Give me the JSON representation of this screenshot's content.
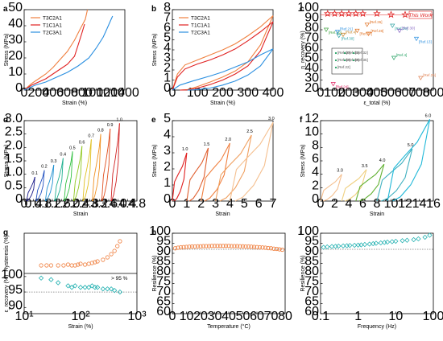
{
  "colors": {
    "orange": "#f08040",
    "red": "#e02020",
    "blue": "#2a8fe0",
    "teal": "#20b0b0",
    "gray": "#999999"
  },
  "chart_data": [
    {
      "panel": "a",
      "type": "line",
      "xlabel": "Strain (%)",
      "ylabel": "Stress (MPa)",
      "xlim": [
        0,
        1400
      ],
      "ylim": [
        0,
        50
      ],
      "xticks": [
        "0",
        "200",
        "400",
        "600",
        "800",
        "1000",
        "1200",
        "1400"
      ],
      "yticks": [
        "0",
        "10",
        "20",
        "30",
        "40",
        "50"
      ],
      "legend": [
        "T3C2A1",
        "T1C1A1",
        "T2C3A1"
      ],
      "series": [
        {
          "name": "T3C2A1",
          "color": "#f08040",
          "x": [
            0,
            100,
            200,
            300,
            400,
            500,
            600,
            700,
            780,
            850,
            880
          ],
          "y": [
            0,
            4,
            7,
            10,
            14,
            19,
            24,
            31,
            38,
            44,
            50
          ]
        },
        {
          "name": "T1C1A1",
          "color": "#e02020",
          "x": [
            0,
            100,
            200,
            300,
            400,
            500,
            600,
            700,
            750,
            800,
            840
          ],
          "y": [
            0,
            3,
            5,
            7,
            10,
            13,
            16,
            21,
            28,
            35,
            41
          ]
        },
        {
          "name": "T2C3A1",
          "color": "#2a8fe0",
          "x": [
            0,
            150,
            300,
            450,
            600,
            750,
            900,
            1000,
            1100,
            1150,
            1200,
            1230
          ],
          "y": [
            0,
            3,
            5,
            8,
            11,
            15,
            20,
            26,
            33,
            38,
            43,
            46
          ]
        }
      ]
    },
    {
      "panel": "b",
      "type": "line",
      "xlabel": "Strain (%)",
      "ylabel": "Stress (MPa)",
      "xlim": [
        0,
        400
      ],
      "ylim": [
        0,
        8
      ],
      "xticks": [
        "0",
        "100",
        "200",
        "300",
        "400"
      ],
      "yticks": [
        "0",
        "1",
        "2",
        "3",
        "4",
        "5",
        "6",
        "7",
        "8"
      ],
      "legend": [
        "T3C2A1",
        "T1C1A1",
        "T2C3A1"
      ],
      "loops": [
        {
          "name": "T3C2A1",
          "color": "#f08040",
          "load_x": [
            0,
            20,
            50,
            100,
            150,
            200,
            250,
            300,
            350,
            400
          ],
          "load_y": [
            0,
            1.6,
            2.5,
            3.0,
            3.5,
            4.0,
            4.6,
            5.4,
            6.3,
            7.4
          ],
          "unload_x": [
            400,
            350,
            300,
            250,
            200,
            150,
            100,
            60,
            30
          ],
          "unload_y": [
            7.4,
            4.5,
            2.8,
            1.9,
            1.3,
            0.8,
            0.35,
            0.05,
            0
          ]
        },
        {
          "name": "T1C1A1",
          "color": "#e02020",
          "load_x": [
            0,
            20,
            50,
            100,
            150,
            200,
            250,
            300,
            350,
            400
          ],
          "load_y": [
            0,
            1.3,
            2.1,
            2.6,
            3.0,
            3.5,
            4.1,
            4.9,
            5.8,
            6.8
          ],
          "unload_x": [
            400,
            350,
            300,
            250,
            200,
            150,
            100,
            60,
            30
          ],
          "unload_y": [
            6.8,
            3.9,
            2.4,
            1.6,
            1.0,
            0.55,
            0.2,
            0.02,
            0
          ]
        },
        {
          "name": "T2C3A1",
          "color": "#2a8fe0",
          "load_x": [
            0,
            30,
            80,
            150,
            200,
            250,
            300,
            350,
            400
          ],
          "load_y": [
            0,
            0.5,
            0.9,
            1.4,
            1.8,
            2.3,
            2.8,
            3.5,
            4.1
          ],
          "unload_x": [
            400,
            350,
            300,
            250,
            200,
            150,
            100,
            60
          ],
          "unload_y": [
            4.1,
            2.4,
            1.5,
            0.9,
            0.5,
            0.2,
            0.05,
            0
          ]
        }
      ]
    },
    {
      "panel": "c",
      "type": "scatter",
      "xlabel": "ε_total (%)",
      "ylabel": "η_recovery (%)",
      "xlim": [
        0,
        800
      ],
      "ylim": [
        20,
        100
      ],
      "xticks": [
        "0",
        "100",
        "200",
        "300",
        "400",
        "500",
        "600",
        "700",
        "800"
      ],
      "yticks": [
        "20",
        "30",
        "40",
        "50",
        "60",
        "70",
        "80",
        "90",
        "100"
      ],
      "this_work_label": "This Work",
      "this_work": {
        "x": [
          50,
          100,
          150,
          200,
          250,
          300,
          400,
          500,
          600,
          700
        ],
        "y": [
          96,
          96,
          96,
          96,
          96,
          96,
          96,
          95,
          95,
          95
        ]
      },
      "refs": [
        {
          "label": "[Ref.26]",
          "x": 330,
          "y": 85
        },
        {
          "label": "[Ref.27]",
          "x": 260,
          "y": 79
        },
        {
          "label": "[Ref.28]",
          "x": 340,
          "y": 76
        },
        {
          "label": "[Ref.29]",
          "x": 510,
          "y": 84
        },
        {
          "label": "[Ref.30]",
          "x": 560,
          "y": 79
        },
        {
          "label": "[Ref.13]",
          "x": 680,
          "y": 71
        },
        {
          "label": "[Ref.4]",
          "x": 520,
          "y": 52
        },
        {
          "label": "[Ref.24]",
          "x": 90,
          "y": 26
        },
        {
          "label": "[Ref.25]",
          "x": 710,
          "y": 32
        },
        {
          "label": "[Ref.20]",
          "x": 40,
          "y": 80
        },
        {
          "label": "[Ref.21]",
          "x": 120,
          "y": 78
        },
        {
          "label": "[Ref.30]",
          "x": 130,
          "y": 74
        },
        {
          "label": "[Ref.4]",
          "x": 160,
          "y": 75
        }
      ],
      "inset_refs": [
        "[Ref.10]",
        "[Ref.31]",
        "[Ref.32]",
        "[Ref.33]",
        "[Ref.34]",
        "[Ref.35]",
        "[Ref.22]"
      ]
    },
    {
      "panel": "d",
      "type": "line",
      "xlabel": "Strain",
      "ylabel": "Stress (MPa)",
      "xlim": [
        0,
        4.8
      ],
      "ylim": [
        0,
        3.0
      ],
      "xticks": [
        "0",
        "0.4",
        "0.8",
        "1.2",
        "1.6",
        "2.0",
        "2.4",
        "2.8",
        "3.2",
        "3.6",
        "4.0",
        "4.4",
        "4.8"
      ],
      "yticks": [
        "0",
        "0.5",
        "1.0",
        "1.5",
        "2.0",
        "2.5",
        "3.0"
      ],
      "labels": [
        "0.1",
        "0.2",
        "0.3",
        "0.4",
        "0.5",
        "0.6",
        "0.7",
        "0.8",
        "0.9",
        "1.0"
      ],
      "offsets": [
        0.1,
        0.5,
        0.9,
        1.3,
        1.7,
        2.1,
        2.5,
        2.9,
        3.3,
        3.7
      ],
      "peaks": [
        0.9,
        1.15,
        1.35,
        1.6,
        1.85,
        2.05,
        2.3,
        2.5,
        2.7,
        2.9
      ],
      "colors": [
        "#1b1b8a",
        "#2050c0",
        "#2090d0",
        "#20b090",
        "#30c040",
        "#90c820",
        "#e0c020",
        "#f09020",
        "#e05020",
        "#d02020"
      ]
    },
    {
      "panel": "e",
      "type": "line",
      "xlabel": "Strain",
      "ylabel": "Stress (MPa)",
      "xlim": [
        0,
        7
      ],
      "ylim": [
        0,
        5
      ],
      "xticks": [
        "0",
        "1",
        "2",
        "3",
        "4",
        "5",
        "6",
        "7"
      ],
      "yticks": [
        "0",
        "1",
        "2",
        "3",
        "4",
        "5"
      ],
      "labels": [
        "1.0",
        "1.5",
        "2.0",
        "2.5",
        "3.0"
      ],
      "starts": [
        0.0,
        1.0,
        2.0,
        3.0,
        4.0
      ],
      "maxstrain": [
        1.0,
        1.5,
        2.0,
        2.5,
        3.0
      ],
      "peaks": [
        3.0,
        3.3,
        3.6,
        4.1,
        4.9
      ],
      "colors": [
        "#e02020",
        "#e06030",
        "#f08040",
        "#f0a060",
        "#f5c090"
      ]
    },
    {
      "panel": "f",
      "type": "line",
      "xlabel": "Strain",
      "ylabel": "Stress (MPa)",
      "xlim": [
        0,
        16
      ],
      "ylim": [
        0,
        12
      ],
      "xticks": [
        "0",
        "2",
        "4",
        "6",
        "8",
        "10",
        "12",
        "14",
        "16"
      ],
      "yticks": [
        "0",
        "2",
        "4",
        "6",
        "8",
        "10",
        "12"
      ],
      "labels": [
        "3.0",
        "3.5",
        "4.0",
        "5.0",
        "6.0"
      ],
      "starts": [
        0.0,
        3.0,
        5.0,
        8.0,
        9.5
      ],
      "maxstrain": [
        3.0,
        3.5,
        4.0,
        5.0,
        6.0
      ],
      "peaks": [
        4.0,
        4.7,
        5.5,
        7.8,
        12.2
      ],
      "colors": [
        "#f5c090",
        "#f0d080",
        "#60b030",
        "#40b0c0",
        "#20b8d8"
      ]
    },
    {
      "panel": "g",
      "type": "scatter",
      "xlabel": "Strain (%)",
      "ylabel_top": "Hysteresis (%)",
      "ylabel_bottom": "ε_recovery (%)",
      "xlim_log": [
        10,
        1000
      ],
      "xticks": [
        "10¹",
        "10²",
        "10³"
      ],
      "yticks_bottom": [
        "90",
        "95",
        "100"
      ],
      "annotation": "> 95 %",
      "hysteresis": {
        "x": [
          20,
          25,
          30,
          40,
          50,
          60,
          70,
          80,
          90,
          100,
          120,
          140,
          160,
          180,
          200,
          250,
          300,
          350,
          400,
          450,
          500
        ],
        "y": [
          10,
          10,
          10,
          10,
          10,
          11,
          10,
          10,
          11,
          12,
          11,
          12,
          13,
          14,
          15,
          17,
          20,
          24,
          28,
          34,
          40
        ]
      },
      "recovery": {
        "x": [
          20,
          30,
          40,
          60,
          70,
          80,
          100,
          120,
          140,
          160,
          180,
          200,
          250,
          300,
          350,
          400,
          500
        ],
        "y": [
          99.5,
          99,
          98,
          97,
          96.5,
          97,
          96.5,
          96.5,
          96.5,
          97,
          96.5,
          96.5,
          96,
          96,
          96,
          95.5,
          95
        ]
      }
    },
    {
      "panel": "h",
      "type": "scatter",
      "xlabel": "Temperature (°C)",
      "ylabel": "Resilience (%)",
      "xlim": [
        0,
        80
      ],
      "ylim": [
        60,
        100
      ],
      "xticks": [
        "0",
        "10",
        "20",
        "30",
        "40",
        "50",
        "60",
        "70",
        "80"
      ],
      "yticks": [
        "60",
        "65",
        "70",
        "75",
        "80",
        "85",
        "90",
        "95",
        "100"
      ],
      "x": [
        2,
        4,
        6,
        8,
        10,
        12,
        14,
        16,
        18,
        20,
        22,
        24,
        26,
        28,
        30,
        32,
        34,
        36,
        38,
        40,
        42,
        44,
        46,
        48,
        50,
        52,
        54,
        56,
        58,
        60,
        62,
        64,
        66,
        68,
        70,
        72,
        74,
        76,
        78
      ],
      "y": [
        92.5,
        92.8,
        93,
        93.1,
        93.2,
        93.3,
        93.4,
        93.4,
        93.5,
        93.5,
        93.6,
        93.6,
        93.6,
        93.7,
        93.7,
        93.7,
        93.7,
        93.7,
        93.7,
        93.7,
        93.6,
        93.6,
        93.6,
        93.5,
        93.5,
        93.4,
        93.4,
        93.3,
        93.2,
        93.1,
        93,
        92.9,
        92.8,
        92.6,
        92.5,
        92.3,
        92.2,
        92,
        91.8
      ]
    },
    {
      "panel": "i",
      "type": "scatter",
      "xlabel": "Frequency (Hz)",
      "ylabel": "Resilience (%)",
      "xlim_log": [
        0.1,
        100
      ],
      "ylim": [
        60,
        100
      ],
      "xticks": [
        "0.1",
        "1",
        "10",
        "100"
      ],
      "yticks": [
        "60",
        "65",
        "70",
        "75",
        "80",
        "85",
        "90",
        "95",
        "100"
      ],
      "x": [
        0.12,
        0.15,
        0.2,
        0.25,
        0.3,
        0.4,
        0.5,
        0.6,
        0.8,
        1,
        1.2,
        1.5,
        2,
        2.5,
        3,
        4,
        5,
        6,
        8,
        10,
        15,
        20,
        30,
        40,
        60,
        80
      ],
      "y": [
        93,
        93.2,
        93.4,
        93.5,
        93.6,
        93.7,
        93.8,
        93.9,
        94,
        94.1,
        94.2,
        94.4,
        94.6,
        94.8,
        95,
        95.2,
        95.4,
        95.6,
        95.8,
        96,
        96.3,
        96.5,
        96.8,
        97.2,
        98,
        99
      ]
    }
  ]
}
